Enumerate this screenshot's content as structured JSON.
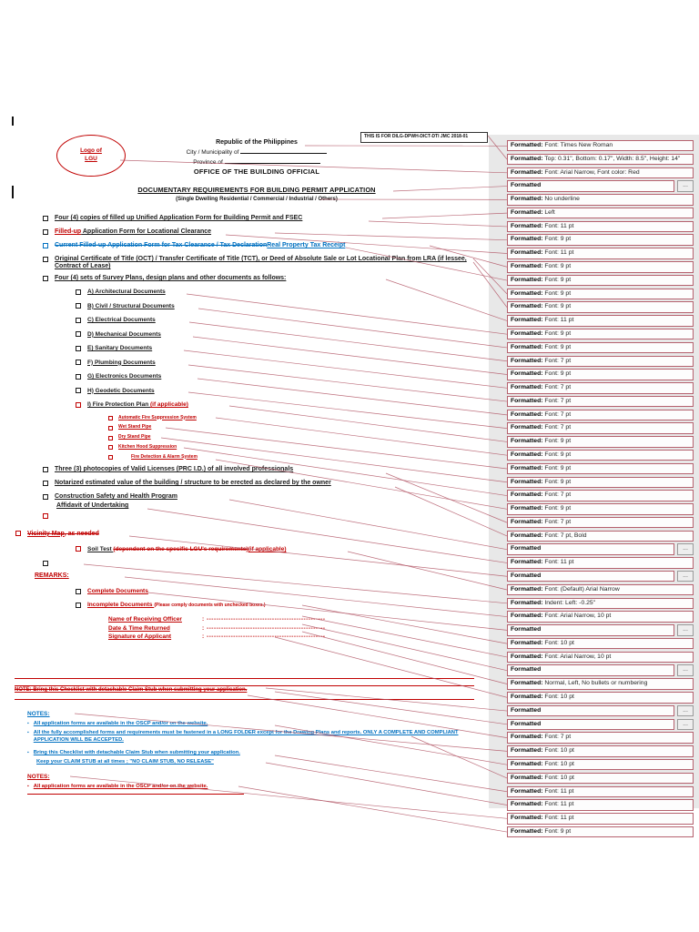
{
  "colors": {
    "accent_red": "#C00000",
    "accent_blue": "#0070C0",
    "balloon_border": "#B5616E",
    "panel_bg": "#E8E8E8"
  },
  "jmc_note": "THIS IS FOR DILG-DPWH-DICT-DTI JMC 2018-01",
  "logo": {
    "line1": "Logo of",
    "line2": "LGU"
  },
  "header": {
    "republic": "Republic of the Philippines",
    "city": "City / Municipality of",
    "province": "Province of",
    "office": "OFFICE OF THE BUILDING OFFICIAL"
  },
  "title": {
    "main": "DOCUMENTARY REQUIREMENTS FOR BUILDING PERMIT APPLICATION",
    "sub": "(Single Dwelling Residential / Commercial / Industrial / Others)"
  },
  "checklist": {
    "items": [
      {
        "indent": 0,
        "box": "black",
        "segments": [
          {
            "t": "Four (4) copies of filled up Unified Application Form for Building Permit and FSEC",
            "s": "n"
          }
        ]
      },
      {
        "indent": 0,
        "box": "black",
        "segments": [
          {
            "t": "Filled-up",
            "s": "ru"
          },
          {
            "t": " Application Form for Locational Clearance",
            "s": "n"
          }
        ]
      },
      {
        "indent": 0,
        "box": "blue",
        "segments": [
          {
            "t": "Current Filled-up Application Form for Tax Clearance / Tax Declaration",
            "s": "bs"
          },
          {
            "t": "Real Property Tax Receipt",
            "s": "bu"
          }
        ]
      },
      {
        "indent": 0,
        "box": "black",
        "cls": "wrap",
        "segments": [
          {
            "t": "Original Certificate of Title (OCT) / Transfer Certificate of Title (TCT), or Deed of Absolute Sale or Lot Locational Plan from LRA (if lessee, Contract of Lease)",
            "s": "n"
          }
        ]
      },
      {
        "indent": 0,
        "box": "black",
        "segments": [
          {
            "t": "Four (4) sets of Survey Plans, design plans and other documents as follows:",
            "s": "n"
          }
        ]
      },
      {
        "indent": 1,
        "box": "black",
        "segments": [
          {
            "t": "A) Architectural Documents",
            "s": "n"
          }
        ]
      },
      {
        "indent": 1,
        "box": "black",
        "segments": [
          {
            "t": "B) Civil / Structural Documents",
            "s": "n"
          }
        ]
      },
      {
        "indent": 1,
        "box": "black",
        "segments": [
          {
            "t": "C) Electrical Documents",
            "s": "n"
          }
        ]
      },
      {
        "indent": 1,
        "box": "black",
        "segments": [
          {
            "t": "D) Mechanical Documents",
            "s": "n"
          }
        ]
      },
      {
        "indent": 1,
        "box": "black",
        "segments": [
          {
            "t": "E) Sanitary Documents",
            "s": "n"
          }
        ]
      },
      {
        "indent": 1,
        "box": "black",
        "segments": [
          {
            "t": "F) Plumbing Documents",
            "s": "n"
          }
        ]
      },
      {
        "indent": 1,
        "box": "black",
        "segments": [
          {
            "t": "G) Electronics Documents",
            "s": "n"
          }
        ]
      },
      {
        "indent": 1,
        "box": "black",
        "segments": [
          {
            "t": "H) Geodetic Documents",
            "s": "n"
          }
        ]
      },
      {
        "indent": 1,
        "box": "red",
        "segments": [
          {
            "t": "I) Fire Protection Plan ",
            "s": "n"
          },
          {
            "t": "(if applicable)",
            "s": "ru"
          }
        ]
      },
      {
        "indent": 2,
        "box": "red",
        "segments": [
          {
            "t": "Automatic Fire Suppression System",
            "s": "ru"
          }
        ]
      },
      {
        "indent": 2,
        "box": "red",
        "segments": [
          {
            "t": "Wet Stand Pipe",
            "s": "ru"
          }
        ]
      },
      {
        "indent": 2,
        "box": "red",
        "segments": [
          {
            "t": "Dry Stand Pipe",
            "s": "ru"
          }
        ]
      },
      {
        "indent": 2,
        "box": "red",
        "segments": [
          {
            "t": "Kitchen Hood Suppression",
            "s": "ru"
          }
        ]
      },
      {
        "indent": 3,
        "box": "red",
        "segments": [
          {
            "t": "Fire Detection & Alarm System",
            "s": "ru"
          }
        ]
      },
      {
        "indent": 0,
        "box": "black",
        "segments": [
          {
            "t": "Three (3) photocopies of Valid Licenses (PRC I.D.) of all involved professionals",
            "s": "n"
          }
        ]
      },
      {
        "indent": 0,
        "box": "black",
        "segments": [
          {
            "t": "Notarized estimated value of the building / structure to be erected as declared by the owner",
            "s": "n"
          }
        ]
      },
      {
        "indent": 0,
        "box": "black",
        "cls": "tight",
        "segments": [
          {
            "t": "Construction Safety and Health Program",
            "s": "n"
          }
        ]
      },
      {
        "indent": 0,
        "box": null,
        "cls": "no-box",
        "segments": [
          {
            "t": "Affidavit of Undertaking",
            "s": "n"
          }
        ]
      },
      {
        "indent": 0,
        "box": "red",
        "cls": "lone",
        "segments": []
      },
      {
        "indent": 0,
        "box": "red",
        "cls": "far-left",
        "segments": [
          {
            "t": "Vicinity Map",
            "s": "rsu"
          },
          {
            "t": ", as needed",
            "s": "rs"
          }
        ]
      },
      {
        "indent": 1,
        "box": "red",
        "segments": [
          {
            "t": "Soil Test ",
            "s": "n"
          },
          {
            "t": "(dependent on the specific LGU's requirements)",
            "s": "rs"
          },
          {
            "t": "(if applicable)",
            "s": "ru"
          }
        ]
      },
      {
        "indent": 0,
        "box": "black",
        "segments": []
      },
      {
        "indent": 0,
        "box": null,
        "cls": "remarks-head",
        "segments": [
          {
            "t": "REMARKS:",
            "s": "ru"
          }
        ]
      },
      {
        "indent": 1,
        "box": "black",
        "segments": [
          {
            "t": "Complete Documents",
            "s": "ru"
          }
        ]
      },
      {
        "indent": 1,
        "box": "black",
        "segments": [
          {
            "t": "Incomplete Documents ",
            "s": "ru"
          },
          {
            "t": "(Please comply documents with unchecked boxes.)",
            "s": "sr"
          }
        ]
      },
      {
        "kind": "kv",
        "label": "Name of Receiving Officer",
        "filler": "-------------------------------------------------"
      },
      {
        "kind": "kv",
        "label": "Date & Time Returned",
        "filler": "-------------------------------------------------"
      },
      {
        "kind": "kv",
        "label": "Signature of Applicant",
        "filler": "-------------------------------------------------"
      }
    ]
  },
  "note_line": "NOTE:  Bring this Checklist with detachable Claim Stub when submitting your application.",
  "notes_blue": {
    "heading": "NOTES:",
    "bullets": [
      {
        "text": "All application forms are available in the OSCP and/or on the website.",
        "bullet": true
      },
      {
        "text": "All the fully accomplished forms and requirements must be fastened in a LONG FOLDER except for the Drawing Plans and reports.  ONLY A COMPLETE AND COMPLIANT APPLICATION WILL BE ACCEPTED.",
        "bullet": true
      },
      {
        "text": "Bring this Checklist with detachable Claim Stub when submitting your application.",
        "bullet": true
      },
      {
        "text": "Keep your CLAIM STUB at all times ; \"NO CLAIM STUB, NO RELEASE\"",
        "bullet": false
      }
    ]
  },
  "notes_red": {
    "heading": "NOTES:",
    "bullets": [
      {
        "text": "All application forms are available in the OSCP and/or on the website.",
        "bullet": true
      }
    ]
  },
  "markup_panel": {
    "word": "Formatted",
    "boxes": [
      {
        "d": "Font: Times New Roman"
      },
      {
        "d": "Top: 0.31\", Bottom: 0.17\", Width: 8.5\", Height: 14\"",
        "tall": true
      },
      {
        "d": "Font: Arial Narrow, Font color: Red"
      },
      {
        "d": "",
        "m": true
      },
      {
        "d": "No underline"
      },
      {
        "d": "Left"
      },
      {
        "d": "Font: 11 pt"
      },
      {
        "d": "Font: 9 pt"
      },
      {
        "d": "Font: 11 pt"
      },
      {
        "d": "Font: 9 pt"
      },
      {
        "d": "Font: 9 pt"
      },
      {
        "d": "Font: 9 pt"
      },
      {
        "d": "Font: 9 pt"
      },
      {
        "d": "Font: 11 pt"
      },
      {
        "d": "Font: 9 pt"
      },
      {
        "d": "Font: 9 pt"
      },
      {
        "d": "Font: 7 pt"
      },
      {
        "d": "Font: 9 pt"
      },
      {
        "d": "Font: 7 pt"
      },
      {
        "d": "Font: 7 pt"
      },
      {
        "d": "Font: 7 pt"
      },
      {
        "d": "Font: 7 pt"
      },
      {
        "d": "Font: 9 pt"
      },
      {
        "d": "Font: 9 pt"
      },
      {
        "d": "Font: 9 pt"
      },
      {
        "d": "Font: 9 pt"
      },
      {
        "d": "Font: 7 pt"
      },
      {
        "d": "Font: 9 pt"
      },
      {
        "d": "Font: 7 pt"
      },
      {
        "d": "Font: 7 pt, Bold"
      },
      {
        "d": "",
        "m": true
      },
      {
        "d": "Font: 11 pt"
      },
      {
        "d": "",
        "m": true
      },
      {
        "d": "Font: (Default) Arial Narrow"
      },
      {
        "d": "Indent: Left:  -0.25\""
      },
      {
        "d": "Font: Arial Narrow, 10 pt"
      },
      {
        "d": "",
        "m": true
      },
      {
        "d": "Font: 10 pt"
      },
      {
        "d": "Font: Arial Narrow, 10 pt"
      },
      {
        "d": "",
        "m": true
      },
      {
        "d": "Normal, Left,  No bullets or numbering"
      },
      {
        "d": "Font: 10 pt"
      },
      {
        "d": "",
        "m": true
      },
      {
        "d": "",
        "m": true
      },
      {
        "d": "Font: 7 pt"
      },
      {
        "d": "Font: 10 pt"
      },
      {
        "d": "Font: 10 pt"
      },
      {
        "d": "Font: 10 pt"
      },
      {
        "d": "Font: 11 pt"
      },
      {
        "d": "Font: 11 pt"
      },
      {
        "d": "Font: 11 pt"
      },
      {
        "d": "Font: 9 pt"
      }
    ]
  }
}
